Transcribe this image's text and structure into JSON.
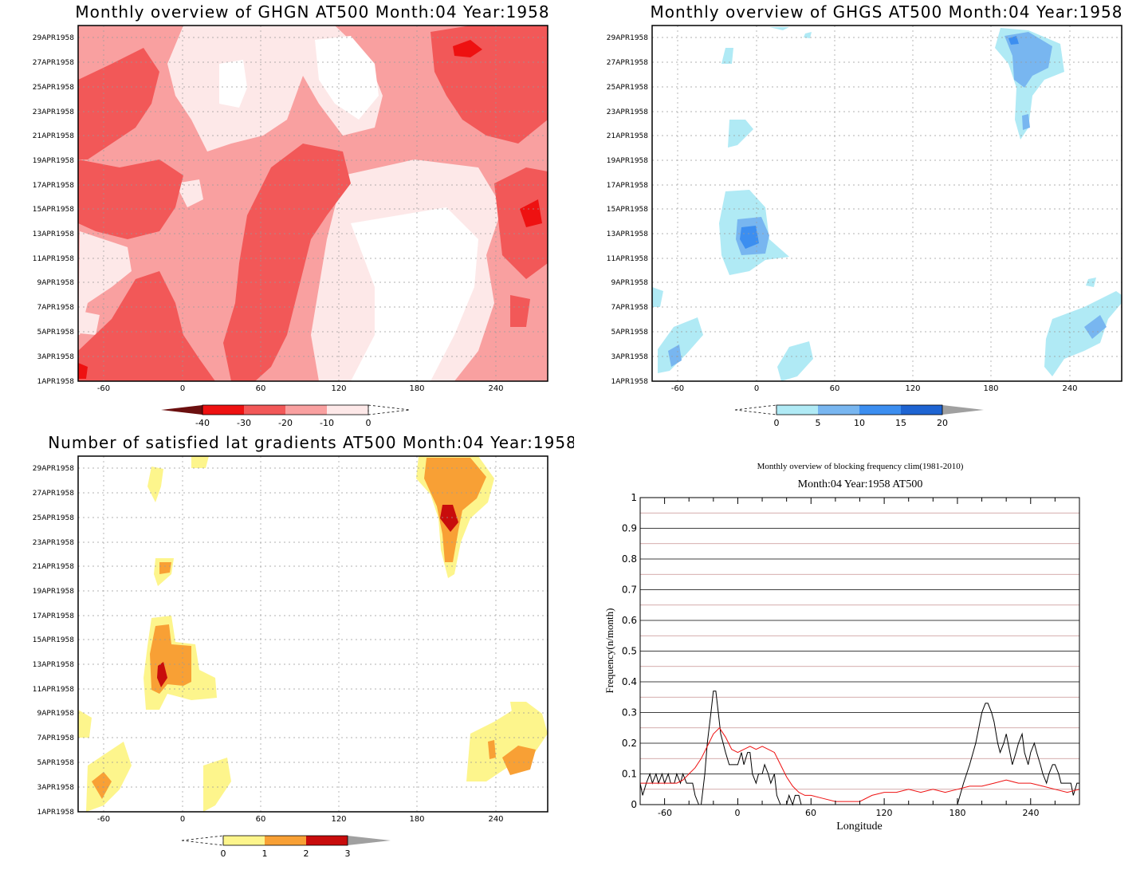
{
  "chart_data": [
    {
      "type": "heatmap",
      "title": "Monthly overview of GHGN AT500 Month:04 Year:1958",
      "x_ticks": [
        "-60",
        "0",
        "60",
        "120",
        "180",
        "240"
      ],
      "y_ticks": [
        "1APR1958",
        "3APR1958",
        "5APR1958",
        "7APR1958",
        "9APR1958",
        "11APR1958",
        "13APR1958",
        "15APR1958",
        "17APR1958",
        "19APR1958",
        "21APR1958",
        "23APR1958",
        "25APR1958",
        "27APR1958",
        "29APR1958"
      ],
      "xlim": [
        -78,
        282
      ],
      "colorbar": {
        "labels": [
          "-40",
          "-30",
          "-20",
          "-10",
          "0"
        ],
        "colors": [
          "#6b0f0f",
          "#ee1111",
          "#f25858",
          "#f9a0a0",
          "#fde8e8"
        ]
      }
    },
    {
      "type": "heatmap",
      "title": "Monthly overview of GHGS AT500 Month:04 Year:1958",
      "x_ticks": [
        "-60",
        "0",
        "60",
        "120",
        "180",
        "240"
      ],
      "y_ticks": [
        "1APR1958",
        "3APR1958",
        "5APR1958",
        "7APR1958",
        "9APR1958",
        "11APR1958",
        "13APR1958",
        "15APR1958",
        "17APR1958",
        "19APR1958",
        "21APR1958",
        "23APR1958",
        "25APR1958",
        "27APR1958",
        "29APR1958"
      ],
      "xlim": [
        -78,
        282
      ],
      "colorbar": {
        "labels": [
          "0",
          "5",
          "10",
          "15",
          "20"
        ],
        "colors": [
          "#b0eaf5",
          "#78b6f0",
          "#3c8ef0",
          "#1e64d2",
          "#a0a0a0"
        ]
      }
    },
    {
      "type": "heatmap",
      "title": "Number of satisfied lat gradients AT500 Month:04 Year:1958",
      "x_ticks": [
        "-60",
        "0",
        "60",
        "120",
        "180",
        "240"
      ],
      "y_ticks": [
        "1APR1958",
        "3APR1958",
        "5APR1958",
        "7APR1958",
        "9APR1958",
        "11APR1958",
        "13APR1958",
        "15APR1958",
        "17APR1958",
        "19APR1958",
        "21APR1958",
        "23APR1958",
        "25APR1958",
        "27APR1958",
        "29APR1958"
      ],
      "xlim": [
        -78,
        282
      ],
      "colorbar": {
        "labels": [
          "0",
          "1",
          "2",
          "3"
        ],
        "colors": [
          "#fdf58c",
          "#f8a035",
          "#c80c0c",
          "#a0a0a0"
        ]
      }
    },
    {
      "type": "line",
      "title": "Monthly overview of blocking frequency clim(1981-2010)",
      "subtitle": "Month:04 Year:1958  AT500",
      "xlabel": "Longitude",
      "ylabel": "Frequency(n/month)",
      "xlim": [
        -80,
        280
      ],
      "ylim": [
        0,
        1
      ],
      "x_ticks": [
        "-60",
        "0",
        "60",
        "120",
        "180",
        "240"
      ],
      "y_ticks": [
        "0",
        "0.1",
        "0.2",
        "0.3",
        "0.4",
        "0.5",
        "0.6",
        "0.7",
        "0.8",
        "0.9",
        "1"
      ],
      "series": [
        {
          "color": "#000000",
          "x": [
            -80,
            -78,
            -75,
            -72,
            -70,
            -67,
            -65,
            -62,
            -60,
            -57,
            -55,
            -52,
            -50,
            -47,
            -45,
            -42,
            -40,
            -37,
            -35,
            -32,
            -30,
            -27,
            -25,
            -22,
            -20,
            -18,
            -16,
            -14,
            -12,
            -10,
            -7,
            -5,
            -2,
            0,
            3,
            5,
            8,
            10,
            12,
            15,
            17,
            20,
            22,
            25,
            27,
            30,
            32,
            35,
            37,
            40,
            42,
            45,
            47,
            50,
            52,
            180,
            185,
            190,
            195,
            200,
            203,
            205,
            208,
            210,
            213,
            215,
            218,
            220,
            223,
            225,
            228,
            230,
            233,
            235,
            238,
            240,
            243,
            245,
            248,
            250,
            253,
            255,
            258,
            260,
            263,
            265,
            268,
            270,
            273,
            275,
            278,
            280
          ],
          "y": [
            0.07,
            0.03,
            0.07,
            0.1,
            0.07,
            0.1,
            0.07,
            0.1,
            0.07,
            0.1,
            0.07,
            0.07,
            0.1,
            0.07,
            0.1,
            0.07,
            0.07,
            0.07,
            0.03,
            0.0,
            0.0,
            0.1,
            0.2,
            0.3,
            0.37,
            0.37,
            0.3,
            0.23,
            0.2,
            0.17,
            0.13,
            0.13,
            0.13,
            0.13,
            0.17,
            0.13,
            0.17,
            0.17,
            0.1,
            0.07,
            0.1,
            0.1,
            0.13,
            0.1,
            0.07,
            0.1,
            0.03,
            0.0,
            0.0,
            0.0,
            0.03,
            0.0,
            0.03,
            0.03,
            0.0,
            0.0,
            0.07,
            0.13,
            0.2,
            0.3,
            0.33,
            0.33,
            0.3,
            0.27,
            0.2,
            0.17,
            0.2,
            0.23,
            0.17,
            0.13,
            0.17,
            0.2,
            0.23,
            0.17,
            0.13,
            0.17,
            0.2,
            0.17,
            0.13,
            0.1,
            0.07,
            0.1,
            0.13,
            0.13,
            0.1,
            0.07,
            0.07,
            0.07,
            0.07,
            0.03,
            0.07,
            0.07
          ]
        },
        {
          "color": "#ee1111",
          "x": [
            -80,
            -70,
            -60,
            -50,
            -45,
            -40,
            -35,
            -30,
            -25,
            -20,
            -15,
            -10,
            -5,
            0,
            5,
            10,
            15,
            20,
            25,
            30,
            35,
            40,
            45,
            50,
            55,
            60,
            70,
            80,
            90,
            100,
            110,
            120,
            130,
            140,
            150,
            160,
            170,
            180,
            190,
            200,
            210,
            220,
            230,
            240,
            250,
            260,
            270,
            280
          ],
          "y": [
            0.07,
            0.07,
            0.07,
            0.07,
            0.08,
            0.1,
            0.12,
            0.15,
            0.19,
            0.23,
            0.25,
            0.22,
            0.18,
            0.17,
            0.18,
            0.19,
            0.18,
            0.19,
            0.18,
            0.17,
            0.13,
            0.09,
            0.06,
            0.04,
            0.03,
            0.03,
            0.02,
            0.01,
            0.01,
            0.01,
            0.03,
            0.04,
            0.04,
            0.05,
            0.04,
            0.05,
            0.04,
            0.05,
            0.06,
            0.06,
            0.07,
            0.08,
            0.07,
            0.07,
            0.06,
            0.05,
            0.04,
            0.05
          ]
        }
      ]
    }
  ]
}
